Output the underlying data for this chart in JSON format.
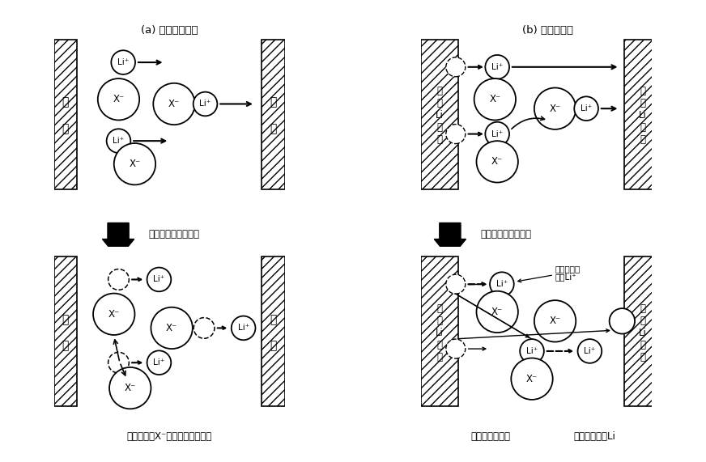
{
  "title_a": "(a) 非活性化電極",
  "title_b": "(b) 活性化電極",
  "arrow_text": "電圧をかけ続けると",
  "caption_a": "この２つのX⁻は相手が遠すぎる",
  "caption_b_left": "溶け出したあと",
  "caption_b_right": "析出した金属Li",
  "caption_b_note": "溶け出して\nきたLi⁺",
  "bg_color": "#ffffff"
}
